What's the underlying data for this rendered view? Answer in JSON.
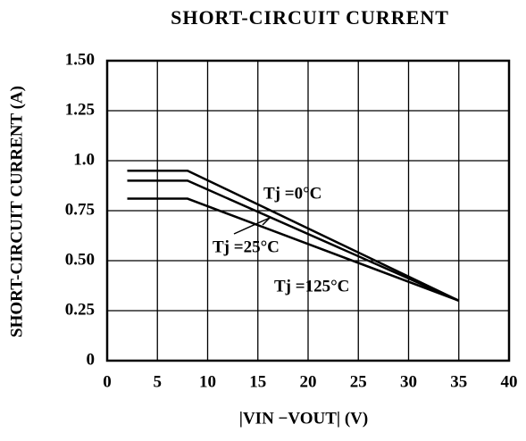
{
  "chart_data": {
    "type": "line",
    "title": "SHORT-CIRCUIT CURRENT",
    "x_label": "|VIN −VOUT| (V)",
    "y_label": "SHORT-CIRCUIT CURRENT (A)",
    "x": [
      2,
      8,
      35
    ],
    "series": [
      {
        "name": "Tj =0°C",
        "color": "#000000",
        "values": [
          0.95,
          0.95,
          0.3
        ]
      },
      {
        "name": "Tj =25°C",
        "color": "#000000",
        "values": [
          0.9,
          0.9,
          0.3
        ]
      },
      {
        "name": "Tj =125°C",
        "color": "#000000",
        "values": [
          0.81,
          0.81,
          0.3
        ]
      }
    ],
    "xlim": [
      0,
      40
    ],
    "xticks": [
      0,
      5,
      10,
      15,
      20,
      25,
      30,
      35,
      40
    ],
    "ylim": [
      0,
      1.5
    ],
    "yticks": [
      0,
      0.25,
      {
        "value": 0.5,
        "label": "0.50"
      },
      0.75,
      {
        "value": 1.0,
        "label": "1.0"
      },
      1.25,
      {
        "value": 1.5,
        "label": "1.50"
      }
    ],
    "grid": true
  }
}
